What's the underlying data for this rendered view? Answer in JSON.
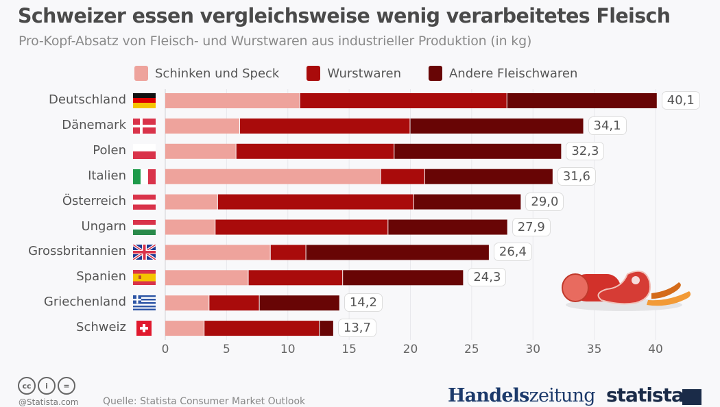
{
  "header": {
    "title": "Schweizer essen vergleichsweise wenig verarbeitetes Fleisch",
    "subtitle": "Pro-Kopf-Absatz von Fleisch- und Wurstwaren aus industrieller Produktion (in kg)"
  },
  "chart_data": {
    "type": "bar",
    "orientation": "horizontal",
    "stacked": true,
    "title": "Schweizer essen vergleichsweise wenig verarbeitetes Fleisch",
    "subtitle": "Pro-Kopf-Absatz von Fleisch- und Wurstwaren aus industrieller Produktion (in kg)",
    "xlabel": "",
    "ylabel": "",
    "xlim": [
      0,
      40
    ],
    "xticks": [
      "0",
      "5",
      "10",
      "15",
      "20",
      "25",
      "30",
      "35",
      "40"
    ],
    "grid": true,
    "legend_position": "top",
    "categories": [
      "Deutschland",
      "Dänemark",
      "Polen",
      "Italien",
      "Österreich",
      "Ungarn",
      "Grossbritannien",
      "Spanien",
      "Griechenland",
      "Schweiz"
    ],
    "flags": [
      "de",
      "dk",
      "pl",
      "it",
      "at",
      "hu",
      "gb",
      "es",
      "gr",
      "ch"
    ],
    "series": [
      {
        "name": "Schinken und Speck",
        "color": "#eea39c",
        "values": [
          11.0,
          6.1,
          5.8,
          17.6,
          4.3,
          4.1,
          8.6,
          6.8,
          3.6,
          3.2
        ]
      },
      {
        "name": "Wurstwaren",
        "color": "#a90b0b",
        "values": [
          16.9,
          13.9,
          12.9,
          3.6,
          16.0,
          14.1,
          2.9,
          7.7,
          4.1,
          9.4
        ]
      },
      {
        "name": "Andere Fleischwaren",
        "color": "#680505",
        "values": [
          12.2,
          14.1,
          13.6,
          10.4,
          8.7,
          9.7,
          14.9,
          9.8,
          6.5,
          1.1
        ]
      }
    ],
    "totals": [
      40.1,
      34.1,
      32.3,
      31.6,
      29.0,
      27.9,
      26.4,
      24.3,
      14.2,
      13.7
    ],
    "total_labels": [
      "40,1",
      "34,1",
      "32,3",
      "31,6",
      "29,0",
      "27,9",
      "26,4",
      "24,3",
      "14,2",
      "13,7"
    ]
  },
  "footer": {
    "license_icons": [
      "cc-icon",
      "attribution-icon",
      "no-derivatives-icon"
    ],
    "license_glyphs": [
      "cc",
      "i",
      "="
    ],
    "statista_url": "@Statista.com",
    "source": "Quelle: Statista Consumer Market Outlook",
    "brand1_a": "Handels",
    "brand1_b": "zeitung",
    "brand2": "statista"
  }
}
